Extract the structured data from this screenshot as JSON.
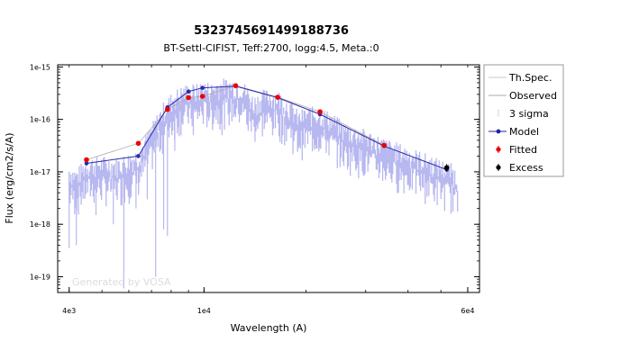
{
  "chart_data": {
    "type": "scatter",
    "title": "5323745691499188736",
    "subtitle": "BT-Settl-CIFIST, Teff:2700, logg:4.5, Meta.:0",
    "xlabel": "Wavelength (A)",
    "ylabel": "Flux (erg/cm2/s/A)",
    "x_scale": "log",
    "y_scale": "log",
    "xlim": [
      3700,
      65000
    ],
    "ylim": [
      5e-20,
      1.1e-15
    ],
    "x_ticks": [
      {
        "value": 4000,
        "label": "4e3"
      },
      {
        "value": 10000,
        "label": "1e4"
      },
      {
        "value": 60000,
        "label": "6e4"
      }
    ],
    "y_ticks": [
      {
        "value": 1e-15,
        "label": "1e-15"
      },
      {
        "value": 1e-16,
        "label": "1e-16"
      },
      {
        "value": 1e-17,
        "label": "1e-17"
      },
      {
        "value": 1e-18,
        "label": "1e-18"
      },
      {
        "value": 1e-19,
        "label": "1e-19"
      }
    ],
    "watermark": "Generated by VOSA",
    "legend": {
      "position": "right",
      "entries": [
        {
          "label": "Th.Spec.",
          "style": "line",
          "color": "#c8c8c8"
        },
        {
          "label": "Observed",
          "style": "line",
          "color": "#aaaaaa"
        },
        {
          "label": "3 sigma",
          "style": "errorbar",
          "color": "#aaaaaa"
        },
        {
          "label": "Model",
          "style": "line-marker",
          "color": "#2222aa"
        },
        {
          "label": "Fitted",
          "style": "errorbar-marker",
          "color": "#ee0000"
        },
        {
          "label": "Excess",
          "style": "errorbar-marker",
          "color": "#000000"
        }
      ]
    },
    "colors": {
      "spectrum": "#b8b8f0",
      "model": "#2a2ab0",
      "fitted": "#ee0000",
      "excess": "#000000",
      "observed_line": "#aaaaaa"
    },
    "model": {
      "x": [
        4500,
        6400,
        7800,
        9000,
        9900,
        12400,
        16500,
        22000,
        34000,
        52000
      ],
      "y": [
        1.45e-17,
        2e-17,
        1.7e-16,
        3.4e-16,
        4e-16,
        4.3e-16,
        2.6e-16,
        1.25e-16,
        3.1e-17,
        1.1e-17
      ]
    },
    "fitted": {
      "x": [
        4500,
        6400,
        7800,
        9000,
        9900,
        12400,
        16500,
        22000,
        34000
      ],
      "y": [
        1.7e-17,
        3.5e-17,
        1.55e-16,
        2.6e-16,
        2.75e-16,
        4.4e-16,
        2.65e-16,
        1.4e-16,
        3.2e-17
      ]
    },
    "excess": {
      "x": [
        52000
      ],
      "y": [
        1.2e-17
      ]
    },
    "spectrum_envelope": [
      [
        4000,
        1e-17
      ],
      [
        4200,
        8e-18
      ],
      [
        4500,
        1.3e-17
      ],
      [
        5000,
        1.4e-17
      ],
      [
        5500,
        1.3e-17
      ],
      [
        6000,
        1.6e-17
      ],
      [
        6400,
        2e-17
      ],
      [
        6800,
        4e-17
      ],
      [
        7200,
        8e-17
      ],
      [
        7600,
        1.5e-16
      ],
      [
        8000,
        2.2e-16
      ],
      [
        8500,
        3e-16
      ],
      [
        9000,
        3.4e-16
      ],
      [
        9500,
        3.3e-16
      ],
      [
        10000,
        3.9e-16
      ],
      [
        10500,
        3.5e-16
      ],
      [
        11000,
        4.2e-16
      ],
      [
        12000,
        4.3e-16
      ],
      [
        13000,
        4e-16
      ],
      [
        14000,
        2e-16
      ],
      [
        15000,
        2.6e-16
      ],
      [
        16500,
        2.6e-16
      ],
      [
        18000,
        1.6e-16
      ],
      [
        19000,
        1e-16
      ],
      [
        20000,
        1.2e-16
      ],
      [
        22000,
        1.25e-16
      ],
      [
        24000,
        9e-17
      ],
      [
        26000,
        6e-17
      ],
      [
        30000,
        4.5e-17
      ],
      [
        34000,
        3.1e-17
      ],
      [
        38000,
        2.4e-17
      ],
      [
        42000,
        1.9e-17
      ],
      [
        46000,
        1.5e-17
      ],
      [
        50000,
        1.2e-17
      ],
      [
        54000,
        1e-17
      ],
      [
        56000,
        7e-18
      ]
    ],
    "spectrum_dips": [
      [
        4000,
        3.5e-19
      ],
      [
        4200,
        4e-19
      ],
      [
        4800,
        1.5e-18
      ],
      [
        5400,
        1e-18
      ],
      [
        5800,
        6e-20
      ],
      [
        6300,
        2e-18
      ],
      [
        6800,
        3e-18
      ],
      [
        7200,
        1e-19
      ],
      [
        7600,
        8e-19
      ],
      [
        7800,
        6e-19
      ],
      [
        8200,
        2.5e-17
      ],
      [
        9300,
        5e-17
      ],
      [
        11300,
        5e-17
      ],
      [
        13500,
        6e-17
      ],
      [
        15200,
        1.2e-16
      ],
      [
        18500,
        5e-17
      ],
      [
        19500,
        4e-17
      ],
      [
        26000,
        2.5e-17
      ],
      [
        35000,
        1.5e-17
      ],
      [
        50000,
        5e-18
      ]
    ]
  }
}
